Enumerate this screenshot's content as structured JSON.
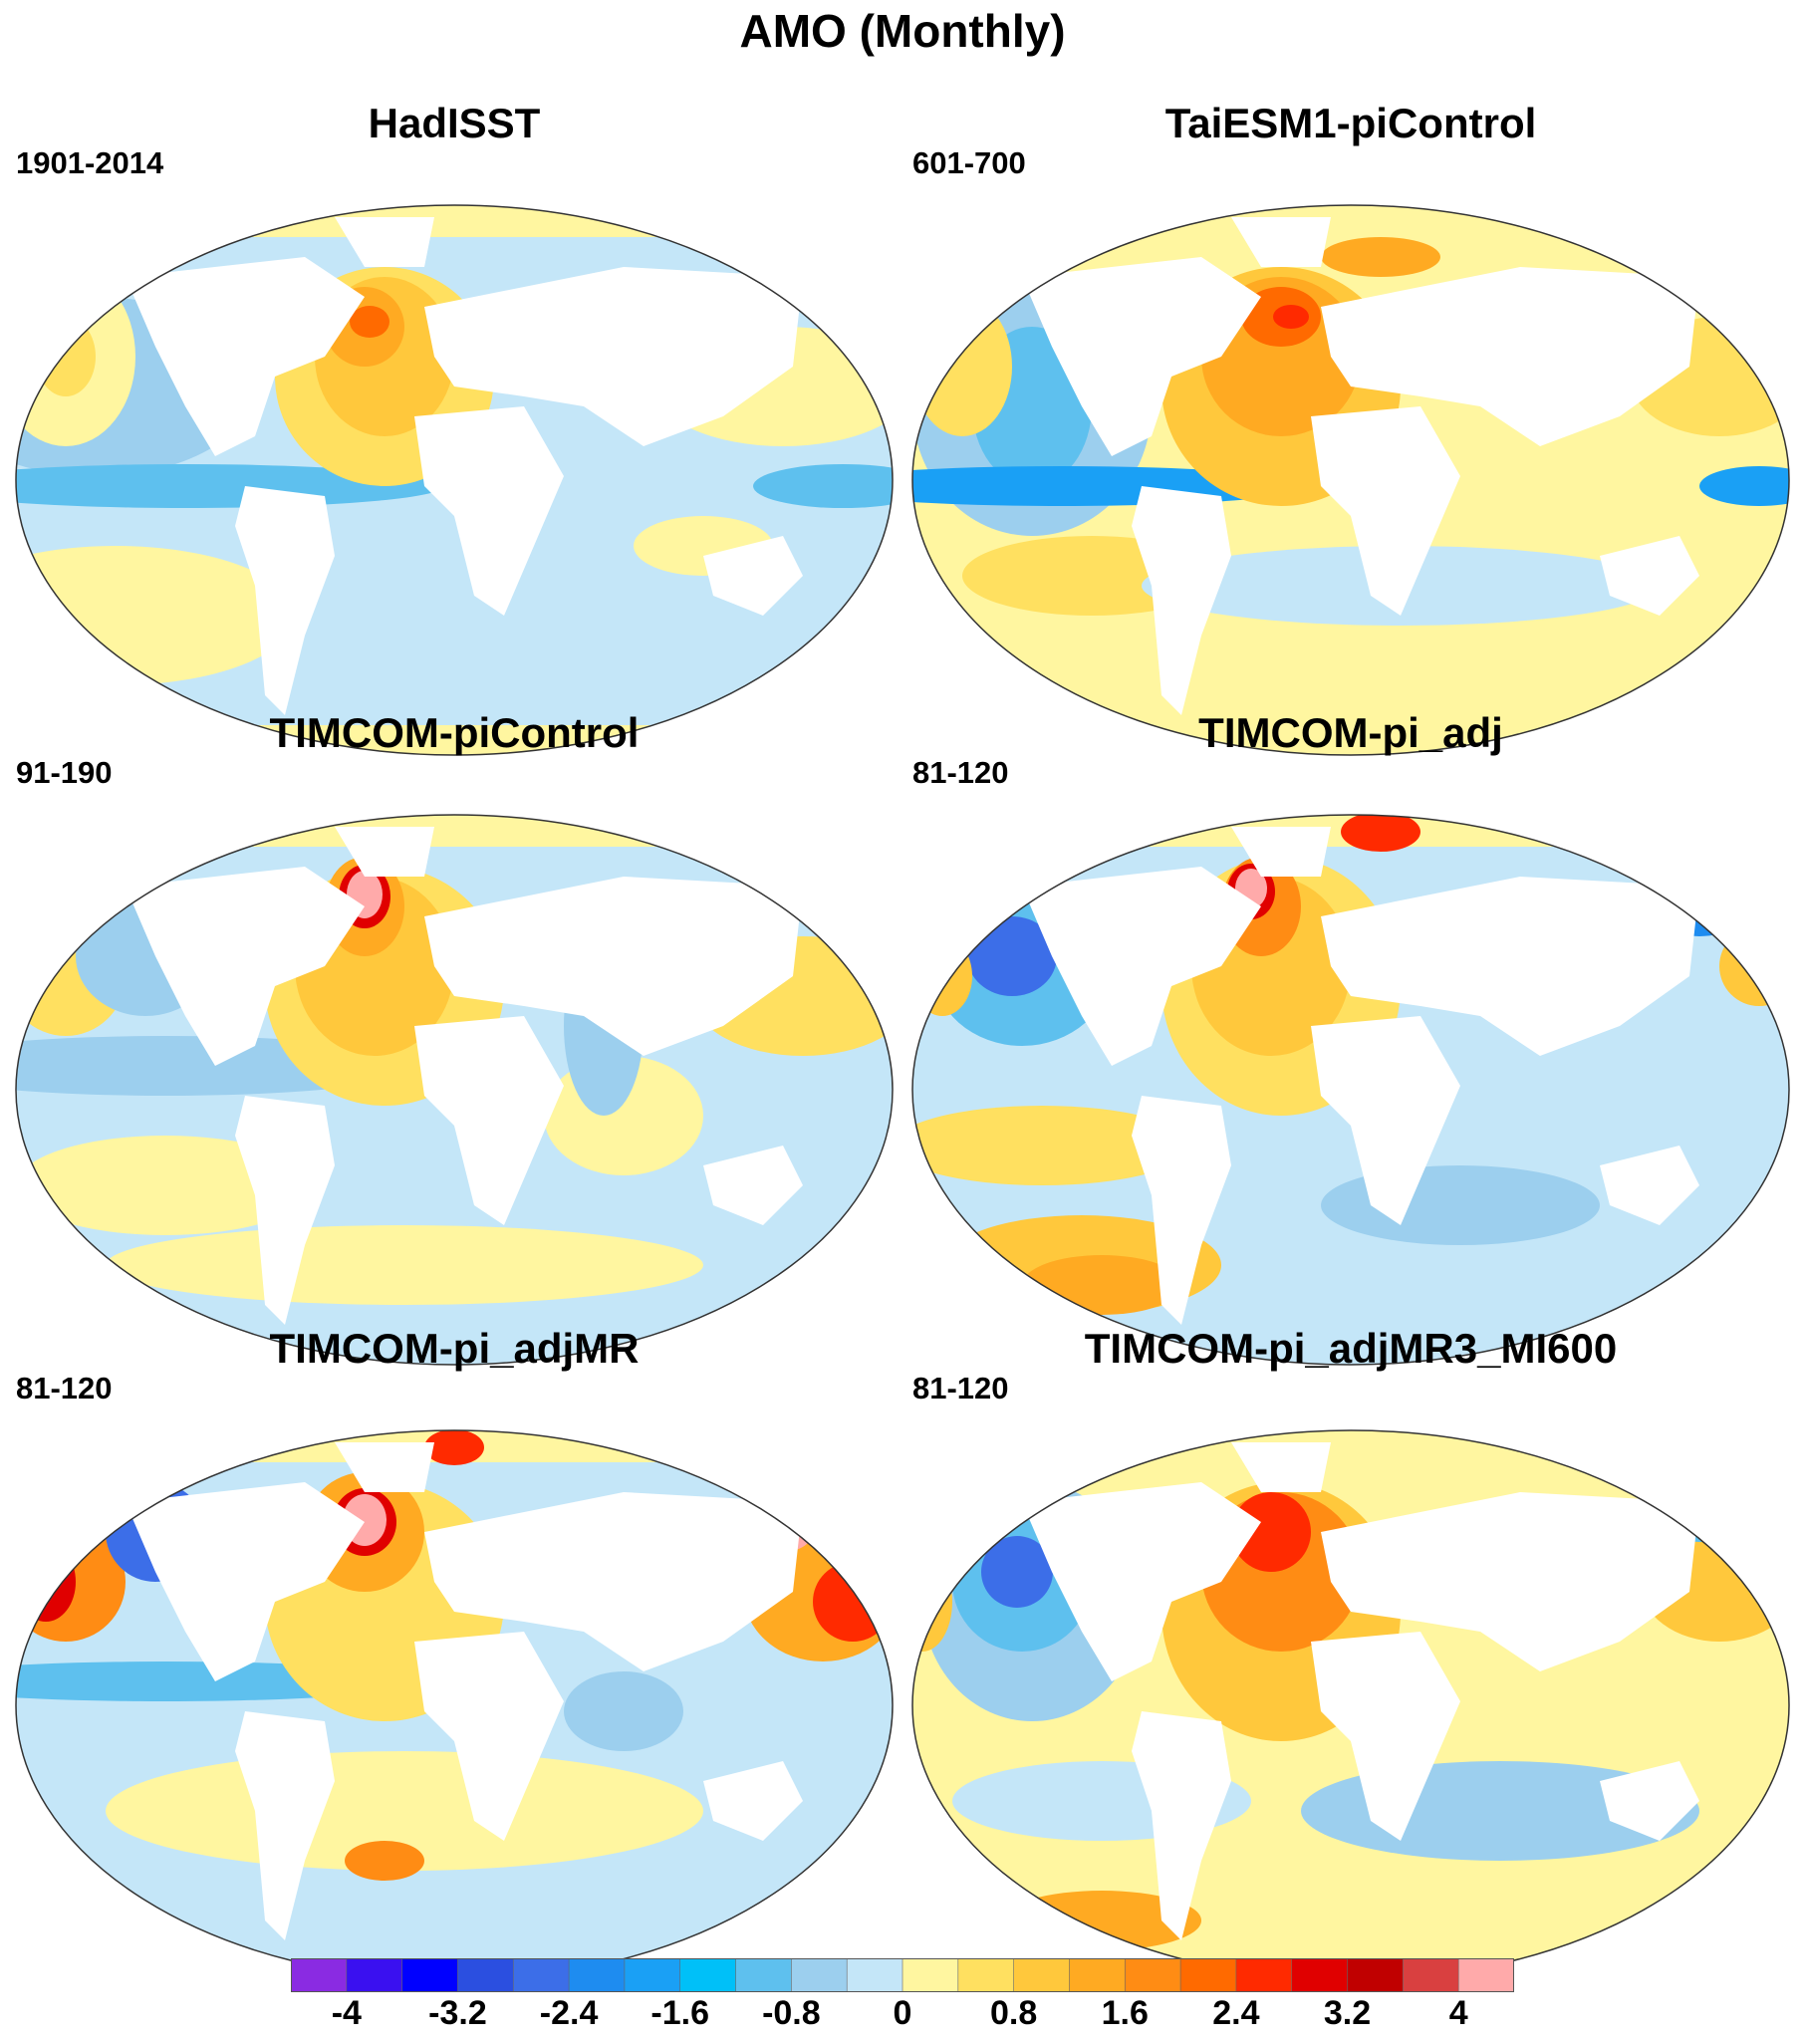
{
  "title": "AMO (Monthly)",
  "panels": [
    {
      "name": "HadISST",
      "period": "1901-2014"
    },
    {
      "name": "TaiESM1-piControl",
      "period": "601-700"
    },
    {
      "name": "TIMCOM-piControl",
      "period": "91-190"
    },
    {
      "name": "TIMCOM-pi_adj",
      "period": "81-120"
    },
    {
      "name": "TIMCOM-pi_adjMR",
      "period": "81-120"
    },
    {
      "name": "TIMCOM-pi_adjMR3_MI600",
      "period": "81-120"
    }
  ],
  "colorbar": {
    "colors": [
      "#8a2be2",
      "#3a10f0",
      "#0000ff",
      "#2b4fe0",
      "#3c6ee8",
      "#1e8cf0",
      "#1aa0f5",
      "#00c0f8",
      "#5ec0ee",
      "#9ccfee",
      "#c4e6f8",
      "#fff6a0",
      "#ffe060",
      "#ffc83c",
      "#ffaa22",
      "#ff8c14",
      "#ff6a00",
      "#ff2a00",
      "#e00000",
      "#c00000",
      "#d94040",
      "#ffaaaa"
    ],
    "tick_labels": [
      "-4",
      "-3.2",
      "-2.4",
      "-1.6",
      "-0.8",
      "0",
      "0.8",
      "1.6",
      "2.4",
      "3.2",
      "4"
    ]
  }
}
